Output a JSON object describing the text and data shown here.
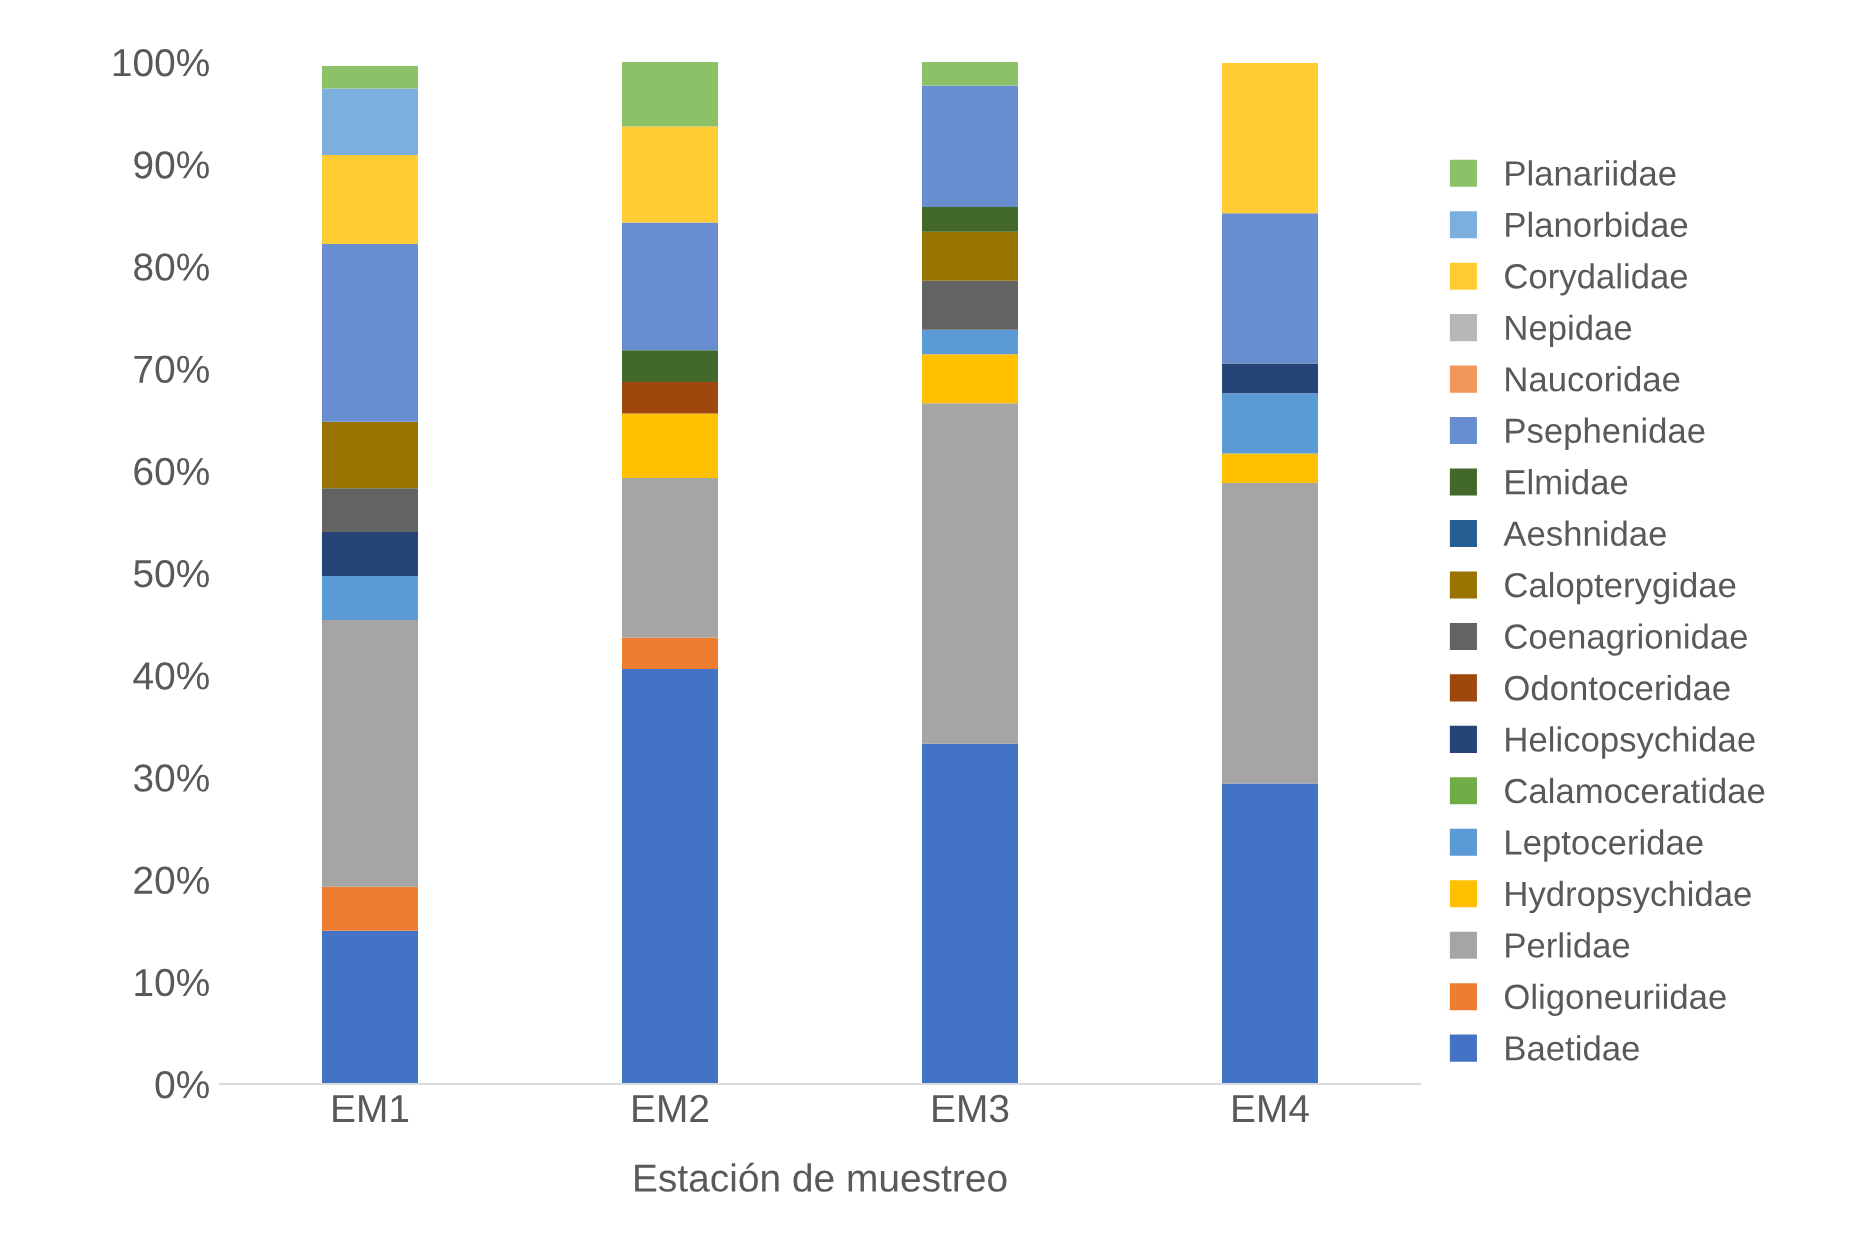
{
  "chart_data": {
    "type": "bar",
    "stacked": true,
    "xlabel": "Estación de muestreo",
    "categories": [
      "EM1",
      "EM2",
      "EM3",
      "EM4"
    ],
    "ylim": [
      0,
      100
    ],
    "yticks": [
      {
        "value": 0,
        "label": "0%"
      },
      {
        "value": 10,
        "label": "10%"
      },
      {
        "value": 20,
        "label": "20%"
      },
      {
        "value": 30,
        "label": "30%"
      },
      {
        "value": 40,
        "label": "40%"
      },
      {
        "value": 50,
        "label": "50%"
      },
      {
        "value": 60,
        "label": "60%"
      },
      {
        "value": 70,
        "label": "70%"
      },
      {
        "value": 80,
        "label": "80%"
      },
      {
        "value": 90,
        "label": "90%"
      },
      {
        "value": 100,
        "label": "100%"
      }
    ],
    "grid": false,
    "legend": "right",
    "series": [
      {
        "name": "Baetidae",
        "color": "#4472c4",
        "values": [
          15.0,
          40.6,
          33.3,
          29.4
        ]
      },
      {
        "name": "Oligoneuriidae",
        "color": "#ed7d31",
        "values": [
          4.3,
          3.1,
          0,
          0
        ]
      },
      {
        "name": "Perlidae",
        "color": "#a5a5a5",
        "values": [
          26.1,
          15.6,
          33.3,
          29.4
        ]
      },
      {
        "name": "Hydropsychidae",
        "color": "#ffc000",
        "values": [
          0,
          6.3,
          4.8,
          2.9
        ]
      },
      {
        "name": "Leptoceridae",
        "color": "#5b9bd5",
        "values": [
          4.3,
          0,
          2.4,
          5.9
        ]
      },
      {
        "name": "Calamoceratidae",
        "color": "#70ad47",
        "values": [
          0,
          0,
          0,
          0
        ]
      },
      {
        "name": "Helicopsychidae",
        "color": "#264478",
        "values": [
          4.3,
          0,
          0,
          2.9
        ]
      },
      {
        "name": "Odontoceridae",
        "color": "#9e480e",
        "values": [
          0,
          3.1,
          0,
          0
        ]
      },
      {
        "name": "Coenagrionidae",
        "color": "#636363",
        "values": [
          4.3,
          0,
          4.8,
          0
        ]
      },
      {
        "name": "Calopterygidae",
        "color": "#997300",
        "values": [
          6.5,
          0,
          4.8,
          0
        ]
      },
      {
        "name": "Aeshnidae",
        "color": "#255e91",
        "values": [
          0,
          0,
          0,
          0
        ]
      },
      {
        "name": "Elmidae",
        "color": "#43682b",
        "values": [
          0,
          3.1,
          2.4,
          0
        ]
      },
      {
        "name": "Psephenidae",
        "color": "#698ed0",
        "values": [
          17.4,
          12.5,
          11.9,
          14.7
        ]
      },
      {
        "name": "Naucoridae",
        "color": "#f1975a",
        "values": [
          0,
          0,
          0,
          0
        ]
      },
      {
        "name": "Nepidae",
        "color": "#b7b7b7",
        "values": [
          0,
          0,
          0,
          0
        ]
      },
      {
        "name": "Corydalidae",
        "color": "#ffcd33",
        "values": [
          8.7,
          9.4,
          0,
          14.7
        ]
      },
      {
        "name": "Planorbidae",
        "color": "#7cafdd",
        "values": [
          6.5,
          0,
          0,
          0
        ]
      },
      {
        "name": "Planariidae",
        "color": "#8cc168",
        "values": [
          2.2,
          6.3,
          2.4,
          0
        ]
      }
    ]
  }
}
